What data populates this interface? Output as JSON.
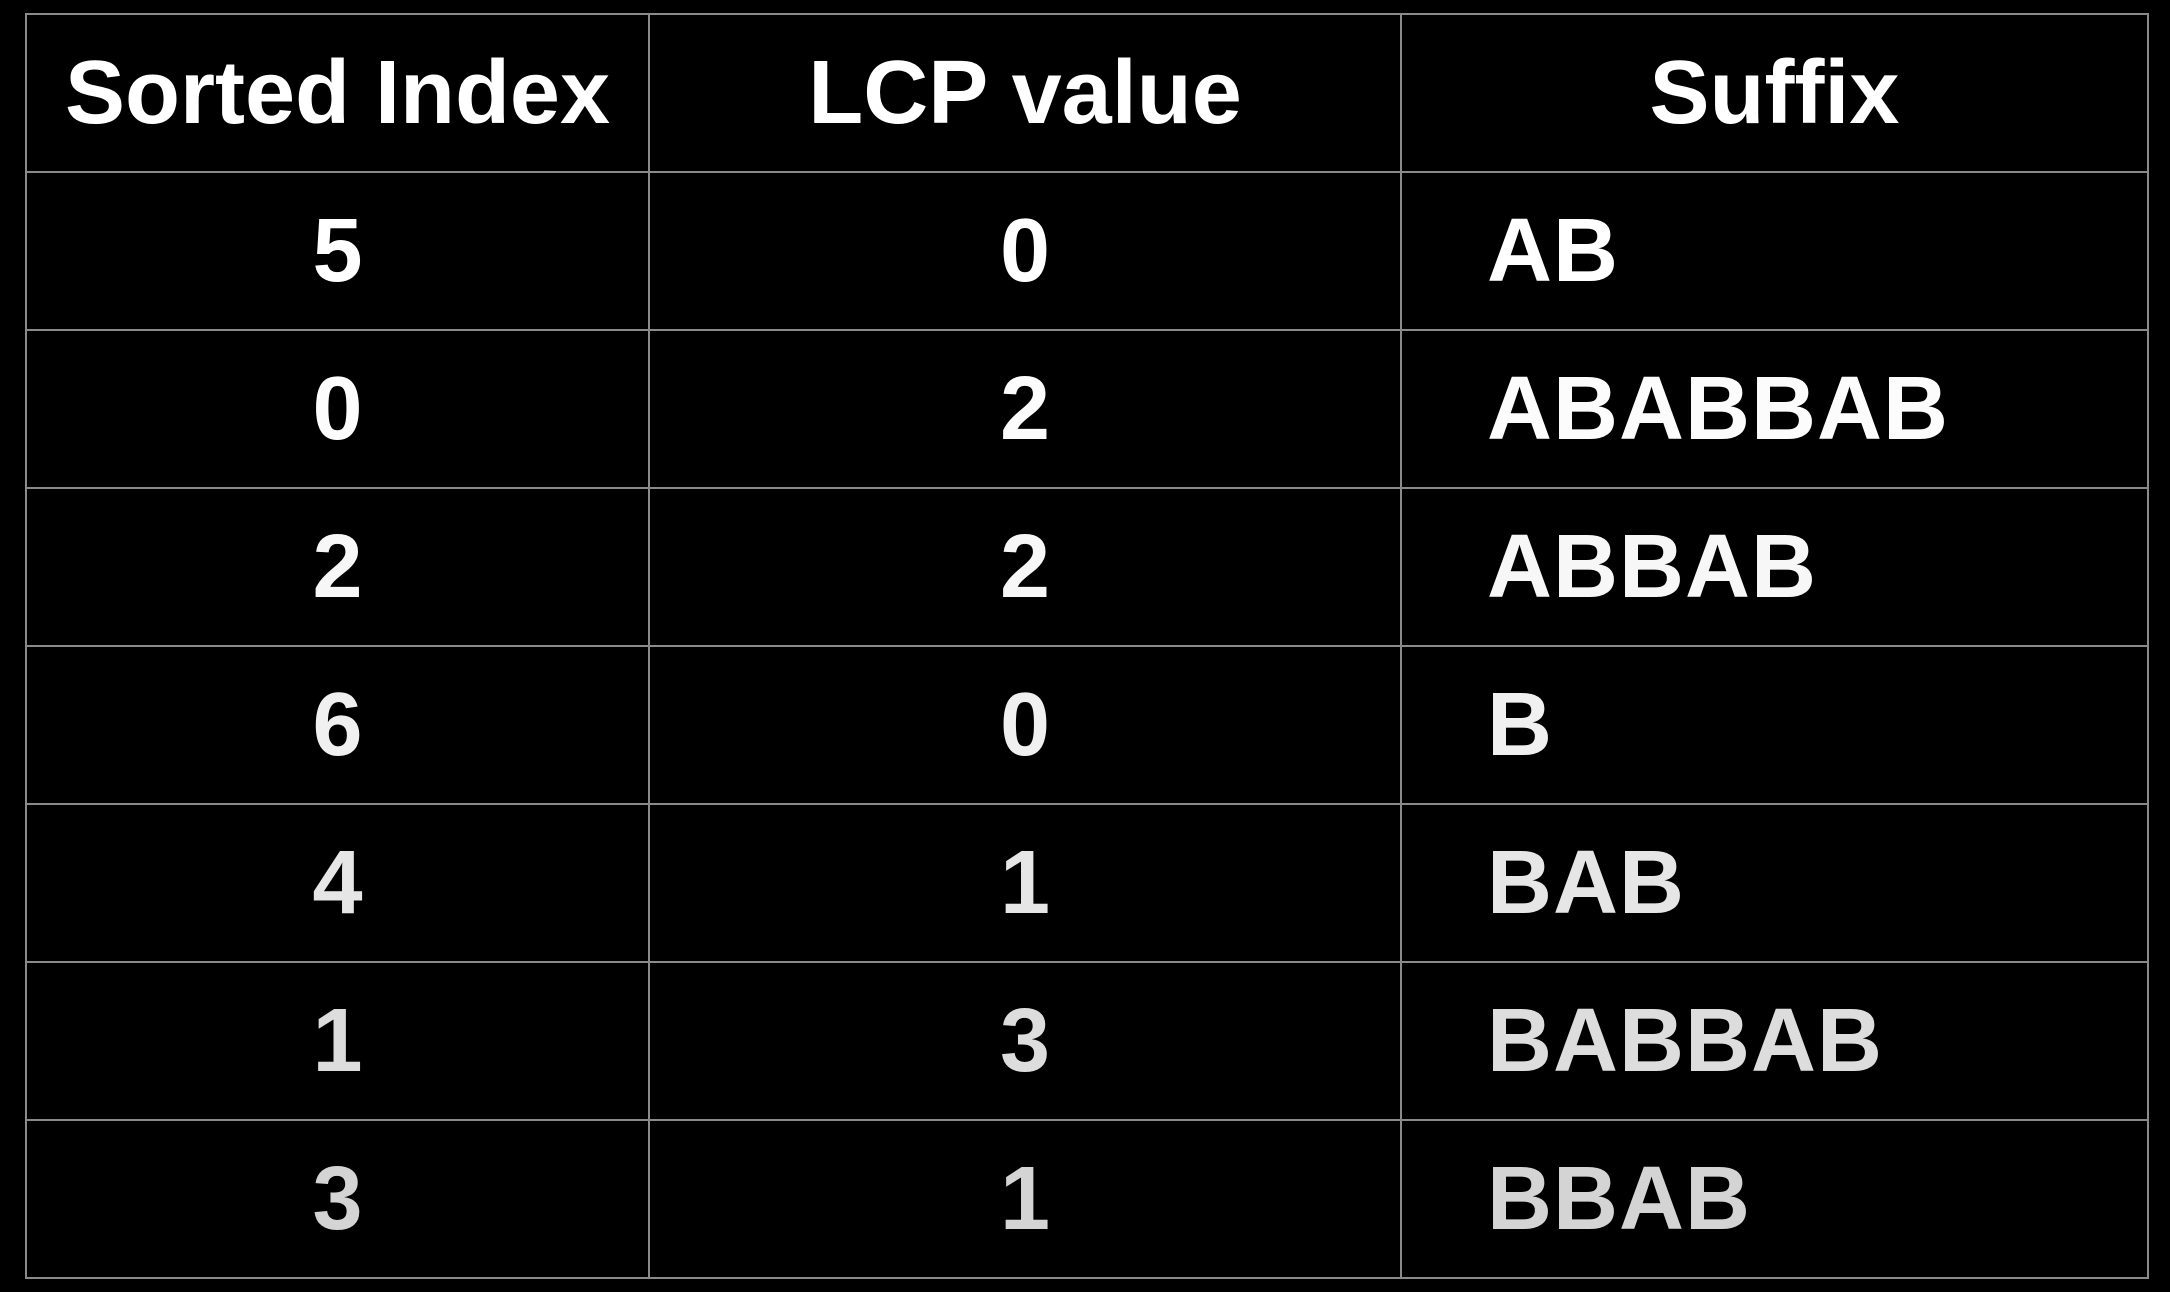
{
  "table": {
    "headers": [
      "Sorted Index",
      "LCP value",
      "Suffix"
    ],
    "rows": [
      {
        "sorted_index": "5",
        "lcp": "0",
        "suffix": "AB"
      },
      {
        "sorted_index": "0",
        "lcp": "2",
        "suffix": "ABABBAB"
      },
      {
        "sorted_index": "2",
        "lcp": "2",
        "suffix": "ABBAB"
      },
      {
        "sorted_index": "6",
        "lcp": "0",
        "suffix": "B"
      },
      {
        "sorted_index": "4",
        "lcp": "1",
        "suffix": "BAB"
      },
      {
        "sorted_index": "1",
        "lcp": "3",
        "suffix": "BABBAB"
      },
      {
        "sorted_index": "3",
        "lcp": "1",
        "suffix": "BBAB"
      }
    ]
  },
  "colors": {
    "background": "#000000",
    "text": "#ffffff",
    "grid": "#8a8a8a"
  }
}
